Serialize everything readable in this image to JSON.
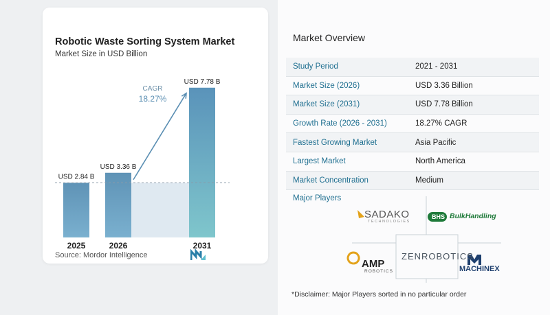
{
  "chart_data": {
    "type": "bar",
    "title": "Robotic Waste Sorting System Market",
    "subtitle": "Market Size in USD Billion",
    "categories": [
      "2025",
      "2026",
      "2031"
    ],
    "values": [
      2.84,
      3.36,
      7.78
    ],
    "data_labels": [
      "USD 2.84 B",
      "USD 3.36 B",
      "USD 7.78 B"
    ],
    "cagr_label": "CAGR",
    "cagr_value": "18.27%",
    "ylim": [
      0,
      8.2
    ],
    "bar_color": "#6d9fbf",
    "bar_color_last": "#7fc6cc",
    "band_color": "#dfe9f1"
  },
  "source": "Source:  Mordor Intelligence",
  "overview": {
    "title": "Market Overview",
    "rows": [
      {
        "label": "Study Period",
        "value": "2021 - 2031"
      },
      {
        "label": "Market Size (2026)",
        "value": "USD 3.36 Billion"
      },
      {
        "label": "Market Size (2031)",
        "value": "USD 7.78 Billion"
      },
      {
        "label": "Growth Rate (2026 - 2031)",
        "value": "18.27% CAGR"
      },
      {
        "label": "Fastest Growing Market",
        "value": "Asia Pacific"
      },
      {
        "label": "Largest Market",
        "value": "North America"
      },
      {
        "label": "Market Concentration",
        "value": "Medium"
      }
    ]
  },
  "major_players": {
    "title": "Major Players",
    "logos": [
      {
        "name": "SADAKO",
        "tagline": "TECHNOLOGIES"
      },
      {
        "name": "BHS",
        "tagline": "BulkHandling"
      },
      {
        "name": "ZENROBOTICS"
      },
      {
        "name": "AMP",
        "tagline": "ROBOTICS"
      },
      {
        "name": "MACHINEX"
      }
    ]
  },
  "disclaimer": "*Disclaimer: Major Players sorted in no particular order"
}
